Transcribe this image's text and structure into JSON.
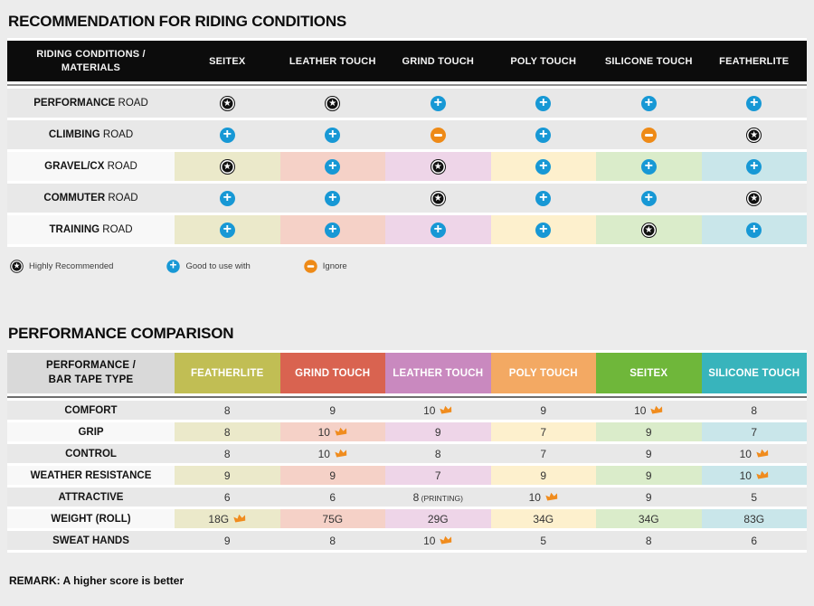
{
  "chart_data": [
    {
      "type": "table",
      "title": "RECOMMENDATION FOR RIDING CONDITIONS",
      "corner_header": "RIDING CONDITIONS / MATERIALS",
      "columns": [
        "SEITEX",
        "LEATHER TOUCH",
        "GRIND TOUCH",
        "POLY TOUCH",
        "SILICONE TOUCH",
        "FEATHERLITE"
      ],
      "rows": [
        {
          "condition": "PERFORMANCE",
          "condition_suffix": "ROAD",
          "tinted": false,
          "ratings": [
            "star",
            "star",
            "plus",
            "plus",
            "plus",
            "plus"
          ]
        },
        {
          "condition": "CLIMBING",
          "condition_suffix": "ROAD",
          "tinted": false,
          "ratings": [
            "plus",
            "plus",
            "minus",
            "plus",
            "minus",
            "star"
          ]
        },
        {
          "condition": "GRAVEL/CX",
          "condition_suffix": "ROAD",
          "tinted": true,
          "ratings": [
            "star",
            "plus",
            "star",
            "plus",
            "plus",
            "plus"
          ]
        },
        {
          "condition": "COMMUTER",
          "condition_suffix": "ROAD",
          "tinted": false,
          "ratings": [
            "plus",
            "plus",
            "star",
            "plus",
            "plus",
            "star"
          ]
        },
        {
          "condition": "TRAINING",
          "condition_suffix": "ROAD",
          "tinted": true,
          "ratings": [
            "plus",
            "plus",
            "plus",
            "plus",
            "star",
            "plus"
          ]
        }
      ],
      "legend": [
        {
          "icon": "star-icon",
          "rating": "star",
          "label": "Highly Recommended"
        },
        {
          "icon": "plus-icon",
          "rating": "plus",
          "label": "Good to use with"
        },
        {
          "icon": "minus-icon",
          "rating": "minus",
          "label": "Ignore"
        }
      ]
    },
    {
      "type": "table",
      "title": "PERFORMANCE COMPARISON",
      "corner_header": "PERFORMANCE / BAR TAPE TYPE",
      "columns": [
        "FEATHERLITE",
        "GRIND TOUCH",
        "LEATHER TOUCH",
        "POLY TOUCH",
        "SEITEX",
        "SILICONE TOUCH"
      ],
      "header_colors": [
        "#c1be54",
        "#d96350",
        "#c989bf",
        "#f3a963",
        "#6fb73a",
        "#38b4bc"
      ],
      "rows": [
        {
          "metric": "COMFORT",
          "tinted": false,
          "values": [
            {
              "text": "8"
            },
            {
              "text": "9"
            },
            {
              "text": "10",
              "crown": true
            },
            {
              "text": "9"
            },
            {
              "text": "10",
              "crown": true
            },
            {
              "text": "8"
            }
          ]
        },
        {
          "metric": "GRIP",
          "tinted": true,
          "values": [
            {
              "text": "8"
            },
            {
              "text": "10",
              "crown": true
            },
            {
              "text": "9"
            },
            {
              "text": "7"
            },
            {
              "text": "9"
            },
            {
              "text": "7"
            }
          ]
        },
        {
          "metric": "CONTROL",
          "tinted": false,
          "values": [
            {
              "text": "8"
            },
            {
              "text": "10",
              "crown": true
            },
            {
              "text": "8"
            },
            {
              "text": "7"
            },
            {
              "text": "9"
            },
            {
              "text": "10",
              "crown": true
            }
          ]
        },
        {
          "metric": "WEATHER RESISTANCE",
          "tinted": true,
          "values": [
            {
              "text": "9"
            },
            {
              "text": "9"
            },
            {
              "text": "7"
            },
            {
              "text": "9"
            },
            {
              "text": "9"
            },
            {
              "text": "10",
              "crown": true
            }
          ]
        },
        {
          "metric": "ATTRACTIVE",
          "tinted": false,
          "values": [
            {
              "text": "6"
            },
            {
              "text": "6"
            },
            {
              "text": "8",
              "suffix": "(PRINTING)"
            },
            {
              "text": "10",
              "crown": true
            },
            {
              "text": "9"
            },
            {
              "text": "5"
            }
          ]
        },
        {
          "metric": "WEIGHT (ROLL)",
          "tinted": true,
          "values": [
            {
              "text": "18G",
              "crown": true
            },
            {
              "text": "75G"
            },
            {
              "text": "29G"
            },
            {
              "text": "34G"
            },
            {
              "text": "34G"
            },
            {
              "text": "83G"
            }
          ]
        },
        {
          "metric": "SWEAT HANDS",
          "tinted": false,
          "values": [
            {
              "text": "9"
            },
            {
              "text": "8"
            },
            {
              "text": "10",
              "crown": true
            },
            {
              "text": "5"
            },
            {
              "text": "8"
            },
            {
              "text": "6"
            }
          ]
        }
      ],
      "remark": "REMARK: A higher score is better"
    }
  ],
  "colors": {
    "page_bg": "#ececec",
    "row_gray": "#e8e8e8",
    "row_label_lite": "#f8f8f8",
    "header_black": "#0c0c0c",
    "star_icon": "#111111",
    "plus_icon": "#1798d5",
    "minus_icon": "#ee8a17",
    "crown_icon": "#f08c1e",
    "column_tints": [
      "#ebe9ca",
      "#f5d1c7",
      "#eed5e8",
      "#fdf0cd",
      "#daecca",
      "#c9e6ea"
    ]
  }
}
